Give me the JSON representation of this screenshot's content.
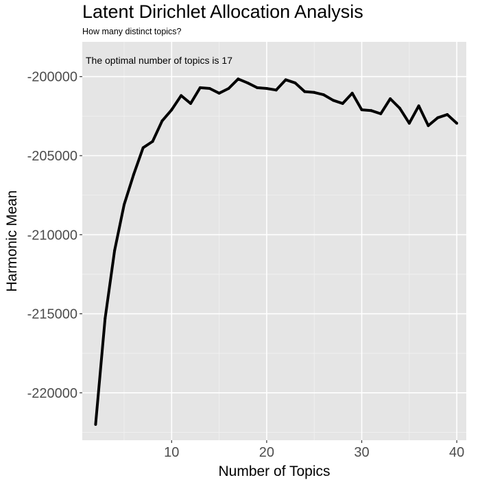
{
  "chart_data": {
    "type": "line",
    "title": "Latent Dirichlet Allocation Analysis",
    "subtitle": "How many distinct topics?",
    "xlabel": "Number of Topics",
    "ylabel": "Harmonic Mean",
    "annotation": "The optimal number of topics is 17",
    "xlim": [
      0.6,
      41.0
    ],
    "ylim": [
      -223000,
      -197800
    ],
    "x_major_ticks": [
      10,
      20,
      30,
      40
    ],
    "x_minor_ticks": [
      5,
      15,
      25,
      35
    ],
    "y_major_ticks": [
      -220000,
      -215000,
      -210000,
      -205000,
      -200000
    ],
    "y_minor_ticks": [
      -222500,
      -217500,
      -212500,
      -207500,
      -202500,
      -197500
    ],
    "grid": true,
    "panel_background": "#e5e5e5",
    "line_color": "#000000",
    "series": [
      {
        "x": [
          2,
          3,
          4,
          5,
          6,
          7,
          8,
          9,
          10,
          11,
          12,
          13,
          14,
          15,
          16,
          17,
          18,
          19,
          20,
          21,
          22,
          23,
          24,
          25,
          26,
          27,
          28,
          29,
          30,
          31,
          32,
          33,
          34,
          35,
          36,
          37,
          38,
          39,
          40
        ],
        "values": [
          -222000,
          -215300,
          -211000,
          -208100,
          -206200,
          -204500,
          -204100,
          -202800,
          -202100,
          -201200,
          -201700,
          -200700,
          -200750,
          -201050,
          -200750,
          -200150,
          -200400,
          -200700,
          -200750,
          -200850,
          -200200,
          -200400,
          -200950,
          -201000,
          -201150,
          -201500,
          -201700,
          -201050,
          -202100,
          -202150,
          -202350,
          -201400,
          -202000,
          -202950,
          -201850,
          -203100,
          -202600,
          -202400,
          -202950
        ]
      }
    ]
  }
}
